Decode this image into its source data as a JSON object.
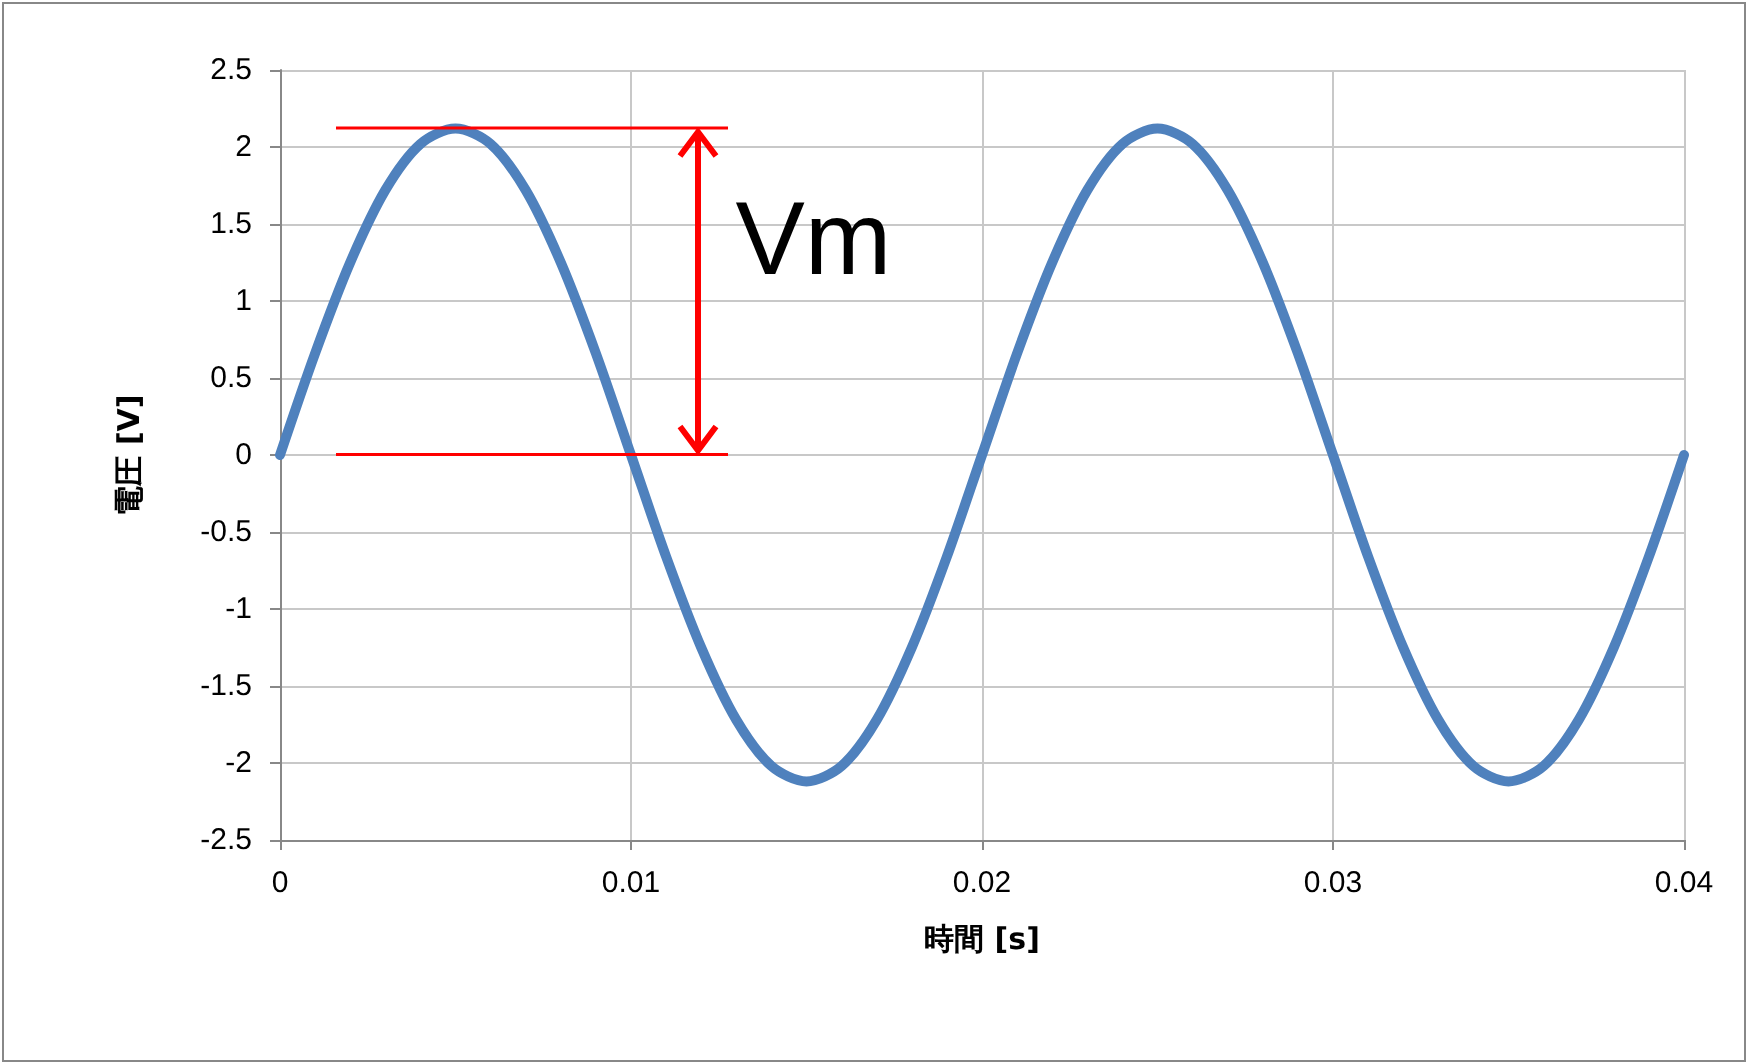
{
  "chart_data": {
    "type": "line",
    "xlabel": "時間 [s]",
    "ylabel": "電圧 [V]",
    "x": [
      0,
      0.001,
      0.002,
      0.003,
      0.004,
      0.005,
      0.006,
      0.007,
      0.008,
      0.009,
      0.01,
      0.011,
      0.012,
      0.013,
      0.014,
      0.015,
      0.016,
      0.017,
      0.018,
      0.019,
      0.02,
      0.021,
      0.022,
      0.023,
      0.024,
      0.025,
      0.026,
      0.027,
      0.028,
      0.029,
      0.03,
      0.031,
      0.032,
      0.033,
      0.034,
      0.035,
      0.036,
      0.037,
      0.038,
      0.039,
      0.04
    ],
    "series": [
      {
        "color": "#4f81bd",
        "values": [
          0,
          0.66,
          1.25,
          1.72,
          2.02,
          2.12,
          2.02,
          1.72,
          1.25,
          0.66,
          0,
          -0.66,
          -1.25,
          -1.72,
          -2.02,
          -2.12,
          -2.02,
          -1.72,
          -1.25,
          -0.66,
          0,
          0.66,
          1.25,
          1.72,
          2.02,
          2.12,
          2.02,
          1.72,
          1.25,
          0.66,
          0,
          -0.66,
          -1.25,
          -1.72,
          -2.02,
          -2.12,
          -2.02,
          -1.72,
          -1.25,
          -0.66,
          0
        ]
      }
    ],
    "xlim": [
      0,
      0.04
    ],
    "xticks": [
      0,
      0.01,
      0.02,
      0.03,
      0.04
    ],
    "ylim": [
      -2.5,
      2.5
    ],
    "yticks": [
      -2.5,
      -2,
      -1.5,
      -1,
      -0.5,
      0,
      0.5,
      1,
      1.5,
      2,
      2.5
    ],
    "grid": true,
    "marker": "none",
    "line_style": "solid",
    "annotations": [
      "Vm"
    ]
  }
}
